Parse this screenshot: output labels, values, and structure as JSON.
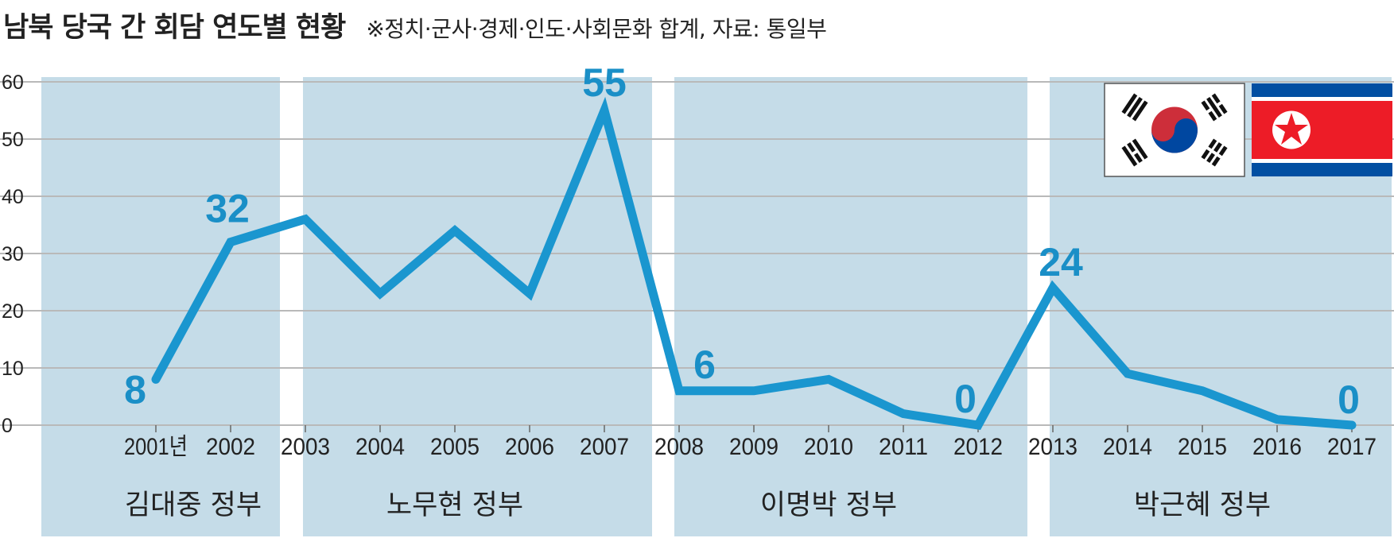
{
  "chart_data": {
    "type": "line",
    "title": "남북 당국 간 회담 연도별 현황",
    "subtitle": "※정치·군사·경제·인도·사회문화 합계, 자료: 통일부",
    "x": [
      "2001년",
      "2002",
      "2003",
      "2004",
      "2005",
      "2006",
      "2007",
      "2008",
      "2009",
      "2010",
      "2011",
      "2012",
      "2013",
      "2014",
      "2015",
      "2016",
      "2017"
    ],
    "values": [
      8,
      32,
      36,
      23,
      34,
      23,
      55,
      6,
      6,
      8,
      2,
      0,
      24,
      9,
      6,
      1,
      0
    ],
    "data_labels": [
      {
        "index": 0,
        "text": "8"
      },
      {
        "index": 1,
        "text": "32"
      },
      {
        "index": 6,
        "text": "55"
      },
      {
        "index": 7,
        "text": "6"
      },
      {
        "index": 11,
        "text": "0"
      },
      {
        "index": 12,
        "text": "24"
      },
      {
        "index": 16,
        "text": "0"
      }
    ],
    "y_ticks": [
      "0",
      "10",
      "20",
      "30",
      "40",
      "50",
      "60"
    ],
    "ylim": [
      0,
      60
    ],
    "grid": true,
    "line_color": "#1a96cf",
    "label_color": "#1a8fc7",
    "band_color": "#c5dce8",
    "gridline_color": "#b9b9b9",
    "eras": [
      {
        "label": "김대중 정부",
        "from": "2001",
        "to": "2002"
      },
      {
        "label": "노무현 정부",
        "from": "2003",
        "to": "2007"
      },
      {
        "label": "이명박 정부",
        "from": "2008",
        "to": "2012"
      },
      {
        "label": "박근혜 정부",
        "from": "2013",
        "to": "2017"
      }
    ]
  },
  "flags": [
    {
      "icon": "south-korea-flag-icon"
    },
    {
      "icon": "north-korea-flag-icon"
    }
  ]
}
